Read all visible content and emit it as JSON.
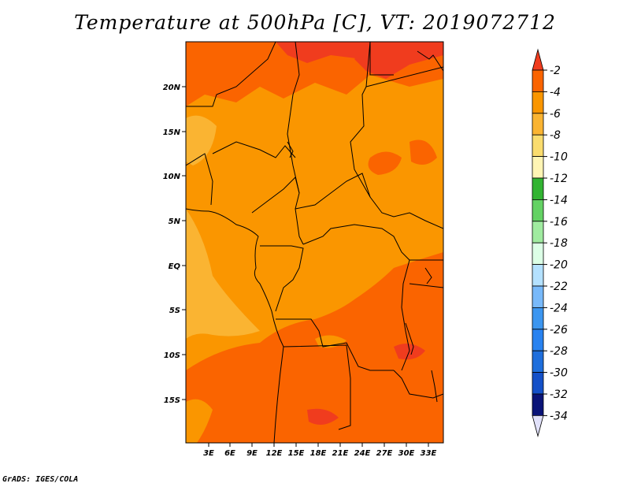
{
  "title": "Temperature at 500hPa [C], VT: 2019072712",
  "credit": "GrADS: IGES/COLA",
  "map": {
    "lat_labels": [
      "20N",
      "15N",
      "10N",
      "5N",
      "EQ",
      "5S",
      "10S",
      "15S"
    ],
    "lon_labels": [
      "3E",
      "6E",
      "9E",
      "12E",
      "15E",
      "18E",
      "21E",
      "24E",
      "27E",
      "30E",
      "33E"
    ]
  },
  "colorbar": {
    "labels": [
      "-2",
      "-4",
      "-6",
      "-8",
      "-10",
      "-12",
      "-14",
      "-16",
      "-18",
      "-20",
      "-22",
      "-24",
      "-26",
      "-28",
      "-30",
      "-32",
      "-34"
    ],
    "colors": [
      "#f03c1e",
      "#fa6400",
      "#fa9600",
      "#fab432",
      "#fadc6e",
      "#fff5b4",
      "#32b432",
      "#64d264",
      "#a0eba0",
      "#dcffe6",
      "#b4e1ff",
      "#78b9fa",
      "#3c96f0",
      "#2882f0",
      "#1e6edc",
      "#1450c8",
      "#0a1478",
      "#e1e1fa"
    ]
  }
}
